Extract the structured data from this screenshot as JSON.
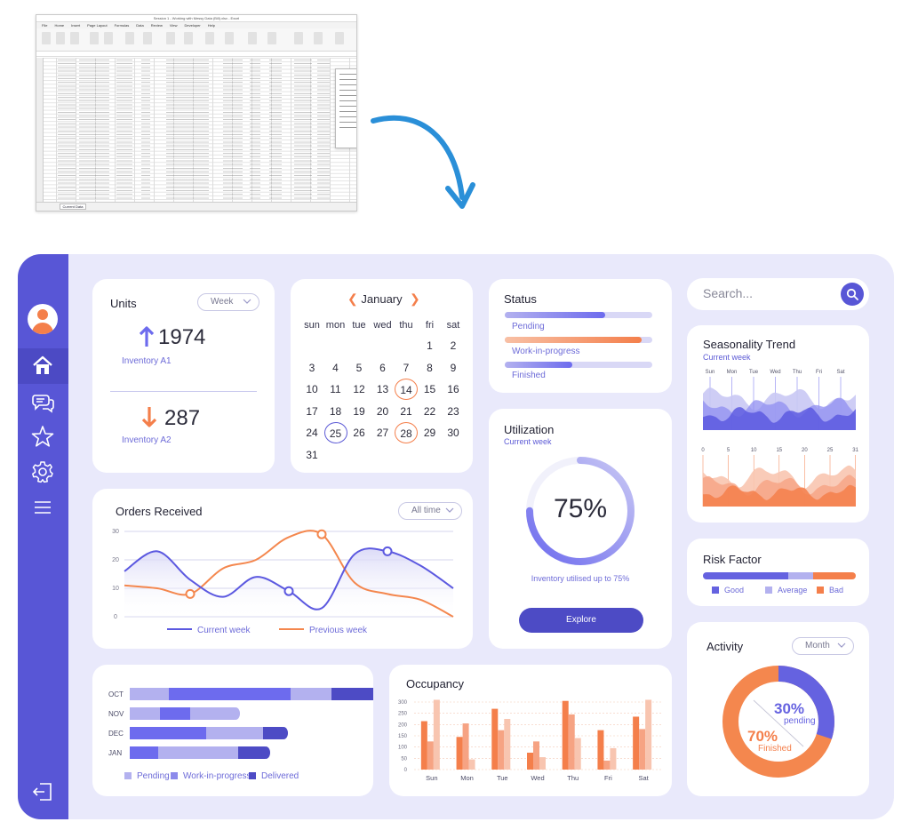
{
  "sidebar": {
    "items": [
      "home",
      "chat",
      "favorites",
      "settings",
      "menu"
    ],
    "logout": "logout"
  },
  "units": {
    "title": "Units",
    "filter": "Week",
    "inventory_a1": {
      "value": "1974",
      "label": "Inventory A1"
    },
    "inventory_a2": {
      "value": "287",
      "label": "Inventory A2"
    }
  },
  "calendar": {
    "month": "January",
    "weekdays": [
      "sun",
      "mon",
      "tue",
      "wed",
      "thu",
      "fri",
      "sat"
    ],
    "weeks": [
      [
        "",
        "",
        "",
        "",
        "",
        "1",
        "2"
      ],
      [
        "3",
        "4",
        "5",
        "6",
        "7",
        "8",
        "9"
      ],
      [
        "10",
        "11",
        "12",
        "13",
        "14",
        "15",
        "16"
      ],
      [
        "17",
        "18",
        "19",
        "20",
        "21",
        "22",
        "23"
      ],
      [
        "24",
        "25",
        "26",
        "27",
        "28",
        "29",
        "30"
      ],
      [
        "31",
        "",
        "",
        "",
        "",
        "",
        ""
      ]
    ],
    "highlight_orange": [
      "14",
      "28"
    ],
    "highlight_blue": [
      "25"
    ]
  },
  "status": {
    "title": "Status",
    "items": [
      {
        "label": "Pending",
        "progress": 0.68,
        "color": "#6d6bee"
      },
      {
        "label": "Work-in-progress",
        "progress": 0.93,
        "color": "#f47f4b"
      },
      {
        "label": "Finished",
        "progress": 0.46,
        "color": "#6d6bee"
      }
    ]
  },
  "utilization": {
    "title": "Utilization",
    "subtitle": "Current week",
    "percent": "75%",
    "value": 0.75,
    "note": "Inventory utilised up to 75%",
    "button": "Explore"
  },
  "search": {
    "placeholder": "Search..."
  },
  "seasonality": {
    "title": "Seasonality Trend",
    "subtitle": "Current week",
    "days": [
      "Sun",
      "Mon",
      "Tue",
      "Wed",
      "Thu",
      "Fri",
      "Sat"
    ],
    "ticks": [
      "0",
      "5",
      "10",
      "15",
      "20",
      "25",
      "31"
    ]
  },
  "risk": {
    "title": "Risk Factor",
    "legend": [
      {
        "label": "Good",
        "color": "#6562e0",
        "share": 0.56
      },
      {
        "label": "Average",
        "color": "#b3b1ef",
        "share": 0.16
      },
      {
        "label": "Bad",
        "color": "#f47f4b",
        "share": 0.28
      }
    ]
  },
  "activity": {
    "title": "Activity",
    "filter": "Month",
    "pending_pct": "30%",
    "pending_label": "pending",
    "finished_pct": "70%",
    "finished_label": "Finished"
  },
  "orders": {
    "title": "Orders Received",
    "filter": "All time",
    "legend_current": "Current week",
    "legend_previous": "Previous week"
  },
  "occupancy": {
    "title": "Occupancy"
  },
  "monthly": {
    "legend": [
      "Pending",
      "Work-in-progress",
      "Delivered"
    ]
  },
  "excel": {
    "title": "Session 1 - Working with Messy Data (Bill).xlsx - Excel",
    "menu": [
      "File",
      "Home",
      "Insert",
      "Page Layout",
      "Formulas",
      "Data",
      "Review",
      "View",
      "Developer",
      "Help"
    ],
    "sheet_tab": "Current Data"
  },
  "chart_data": [
    {
      "type": "line",
      "title": "Orders Received",
      "x": [
        0,
        1,
        2,
        3,
        4,
        5,
        6,
        7,
        8,
        9,
        10
      ],
      "ylim": [
        0,
        30
      ],
      "yticks": [
        "0",
        "10",
        "20",
        "30"
      ],
      "series": [
        {
          "name": "Current week",
          "values": [
            16,
            23,
            13,
            7,
            14,
            9,
            3,
            22,
            23,
            18,
            10
          ],
          "color": "#5c59e0"
        },
        {
          "name": "Previous week",
          "values": [
            11,
            10,
            8,
            17,
            20,
            28,
            29,
            12,
            8,
            6,
            0
          ],
          "color": "#f4874e"
        }
      ]
    },
    {
      "type": "bar",
      "title": "Occupancy",
      "categories": [
        "Sun",
        "Mon",
        "Tue",
        "Wed",
        "Thu",
        "Fri",
        "Sat"
      ],
      "ylim": [
        0,
        300
      ],
      "yticks": [
        "0",
        "50",
        "100",
        "150",
        "200",
        "250",
        "300"
      ],
      "series": [
        {
          "values": [
            215,
            145,
            270,
            75,
            305,
            175,
            235
          ],
          "color": "#f47f4b"
        },
        {
          "values": [
            125,
            205,
            175,
            125,
            245,
            40,
            180
          ],
          "color": "#f6a383"
        },
        {
          "values": [
            310,
            45,
            225,
            55,
            140,
            95,
            310
          ],
          "color": "#f8c5b0"
        }
      ]
    },
    {
      "type": "bar",
      "orientation": "horizontal",
      "categories": [
        "OCT",
        "NOV",
        "DEC",
        "JAN"
      ],
      "series": [
        {
          "name": "Pending",
          "values": [
            44,
            34,
            0,
            0
          ],
          "color": "#b3b1ef"
        },
        {
          "name": "Work-in-progress",
          "values": [
            137,
            34,
            86,
            32
          ],
          "color": "#6d6bee"
        },
        {
          "name": "Delivered",
          "values": [
            46,
            56,
            64,
            90
          ],
          "color": "#b3b1ef"
        },
        {
          "name": "Delivered ",
          "values": [
            63,
            0,
            28,
            36
          ],
          "color": "#4d4bc5"
        }
      ]
    }
  ]
}
